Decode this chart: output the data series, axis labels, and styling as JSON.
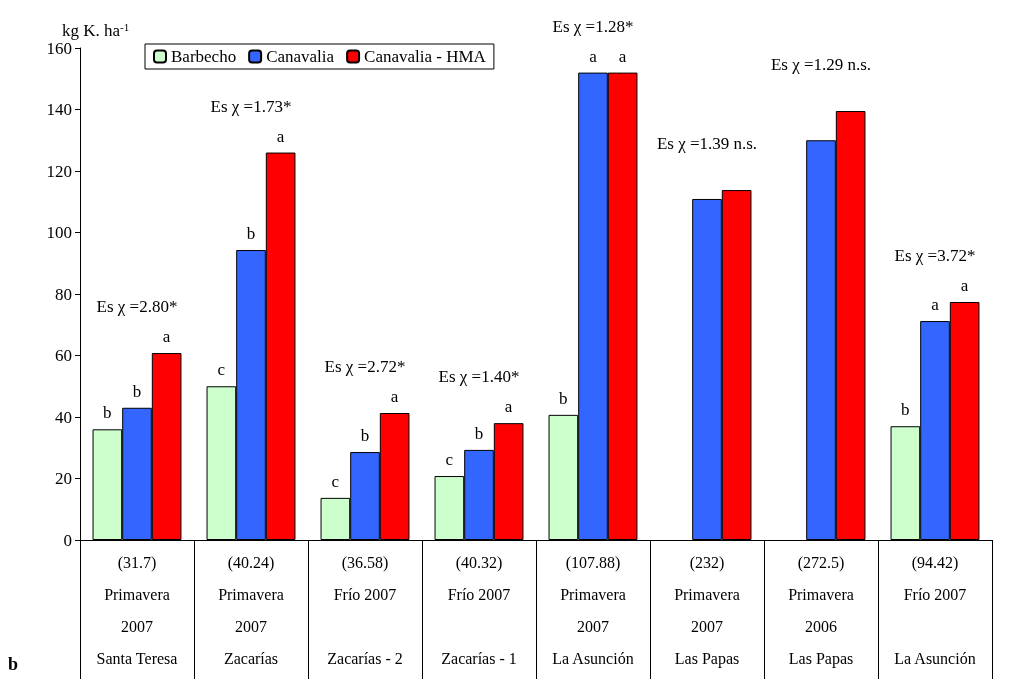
{
  "chart_data": {
    "type": "bar",
    "ylabel": "kg K. ha$^{-1}$",
    "categories": [
      "(31.7)\nPrimavera\n2007\nSanta Teresa",
      "(40.24)\nPrimavera\n2007\nZacarías",
      "(36.58)\nFrío 2007\n\nZacarías - 2",
      "(40.32)\nFrío 2007\n\nZacarías - 1",
      "(107.88)\nPrimavera\n2007\nLa Asunción",
      "(232)\nPrimavera\n2007\nLas Papas",
      "(272.5)\nPrimavera\n2006\nLas Papas",
      "(94.42)\nFrío 2007\n\nLa Asunción"
    ],
    "series": [
      {
        "name": "Barbecho",
        "color": "#ccffcc",
        "values": [
          36,
          50,
          13.7,
          20.8,
          40.7,
          null,
          null,
          37
        ],
        "value_labels": [
          "b",
          "c",
          "c",
          "c",
          "b",
          null,
          null,
          "b"
        ]
      },
      {
        "name": "Canavalia",
        "color": "#3366ff",
        "values": [
          43,
          94.3,
          28.6,
          29.3,
          152,
          110.9,
          130,
          71.2
        ],
        "value_labels": [
          "b",
          "b",
          "b",
          "b",
          "a",
          null,
          null,
          "a"
        ]
      },
      {
        "name": "Canavalia - HMA",
        "color": "#ff0000",
        "values": [
          60.8,
          126,
          41.3,
          38,
          152,
          113.8,
          139.5,
          77.4
        ],
        "value_labels": [
          "a",
          "a",
          "a",
          "a",
          "a",
          null,
          null,
          "a"
        ]
      }
    ],
    "annotations": [
      "Es χ =2.80*",
      "Es χ =1.73*",
      "Es χ =2.72*",
      "Es χ =1.40*",
      "Es χ =1.28*",
      "Es χ =1.39 n.s.",
      "Es χ =1.29 n.s.",
      "Es χ =3.72*",
      "b"
    ],
    "ylim": [
      0,
      160
    ],
    "yticks": [
      0,
      20,
      40,
      60,
      80,
      100,
      120,
      140,
      160
    ],
    "grid": false,
    "legend": "top left"
  }
}
